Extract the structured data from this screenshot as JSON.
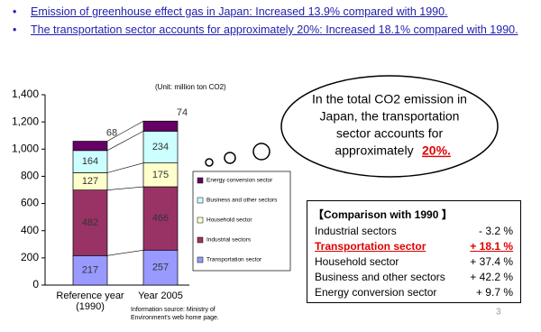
{
  "bullets": [
    "Emission of greenhouse effect gas in Japan: Increased 13.9% compared with 1990.",
    "The transportation sector accounts for approximately 20%: Increased 18.1% compared with 1990."
  ],
  "chart_data": {
    "type": "stacked-bar",
    "unit_note": "(Unit: million ton CO2)",
    "categories": [
      "Reference year\n(1990)",
      "Year 2005"
    ],
    "series": [
      {
        "name": "Transportation sector",
        "color": "#9999ff",
        "values": [
          217,
          257
        ]
      },
      {
        "name": "Industrial sectors",
        "color": "#993366",
        "values": [
          482,
          466
        ]
      },
      {
        "name": "Household sector",
        "color": "#ffffcc",
        "values": [
          127,
          175
        ]
      },
      {
        "name": "Business and other sectors",
        "color": "#ccffff",
        "values": [
          164,
          234
        ]
      },
      {
        "name": "Energy conversion sector",
        "color": "#660066",
        "values": [
          68,
          74
        ]
      }
    ],
    "ylim": [
      0,
      1400
    ],
    "yticks": [
      0,
      200,
      400,
      600,
      800,
      {
        "value": 1000,
        "label": "1,000"
      },
      {
        "value": 1200,
        "label": "1,200"
      },
      {
        "value": 1400,
        "label": "1,400"
      }
    ],
    "source": [
      "Information source: Ministry of",
      "Environment's web home page."
    ]
  },
  "bubble": {
    "lines": [
      "In the total CO2 emission in",
      "Japan, the transportation",
      "sector accounts for",
      "approximately"
    ],
    "highlight": "20%."
  },
  "table": {
    "title": "【Comparison with 1990 】",
    "rows": [
      [
        "Industrial sectors",
        "- 3.2 %"
      ],
      [
        "Transportation sector",
        "+ 18.1 %"
      ],
      [
        "Household sector",
        "+ 37.4 %"
      ],
      [
        "Business and other sectors",
        "+ 42.2 %"
      ],
      [
        "Energy conversion sector",
        "+ 9.7 %"
      ]
    ]
  },
  "page_number": "3"
}
